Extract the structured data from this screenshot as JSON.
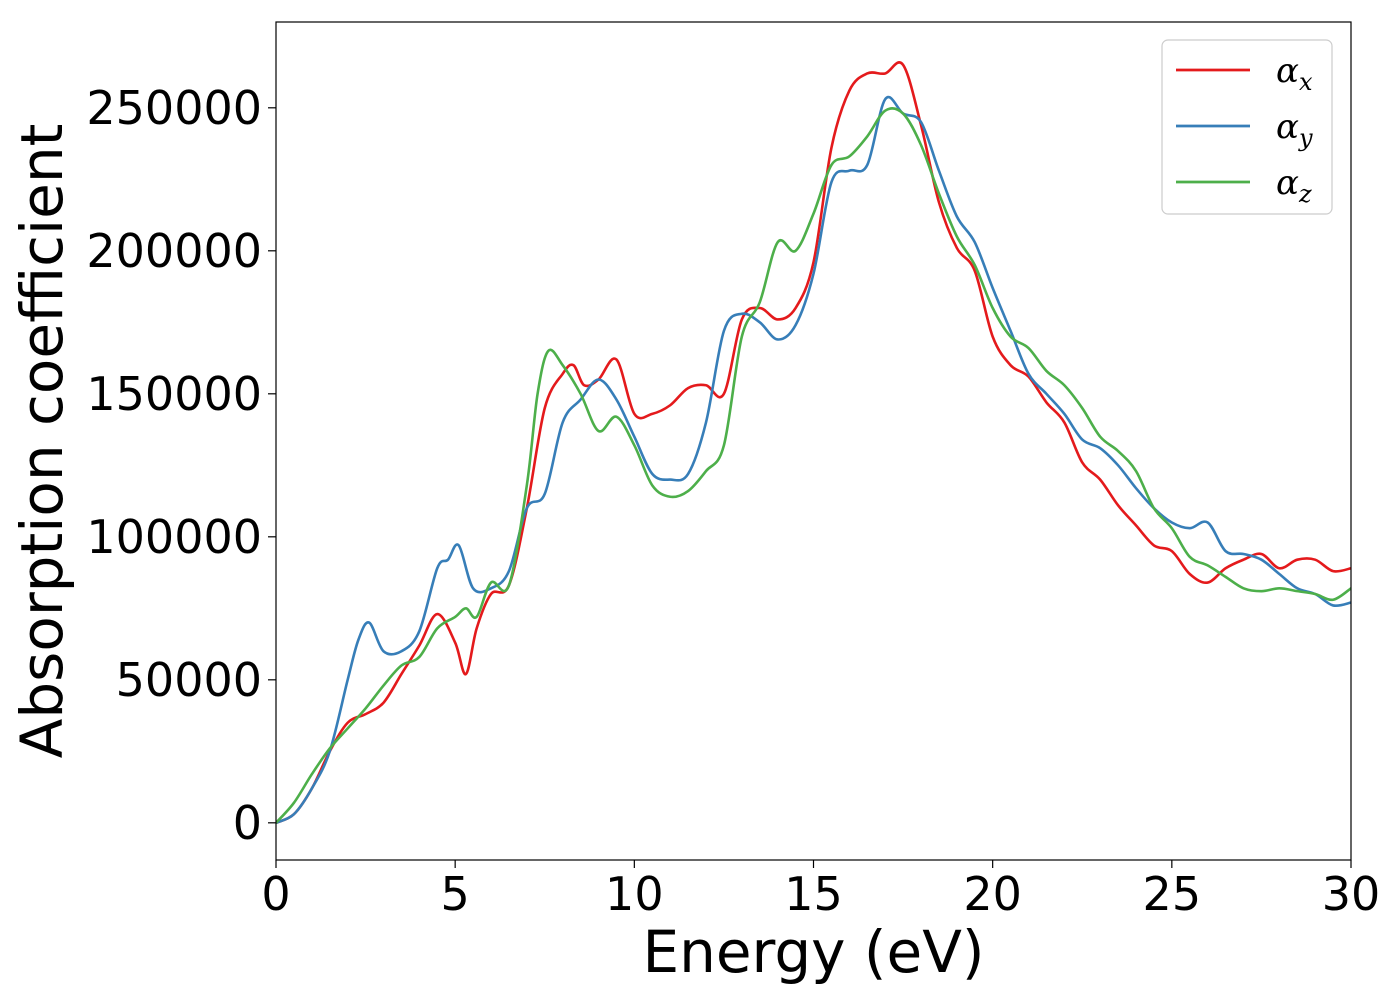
{
  "chart_data": {
    "type": "line",
    "xlabel": "Energy (eV)",
    "ylabel": "Absorption coefficient",
    "xlim": [
      0,
      30
    ],
    "ylim": [
      -13000,
      280000
    ],
    "xticks": [
      0,
      5,
      10,
      15,
      20,
      25,
      30
    ],
    "xtick_labels": [
      "0",
      "5",
      "10",
      "15",
      "20",
      "25",
      "30"
    ],
    "yticks": [
      0,
      50000,
      100000,
      150000,
      200000,
      250000
    ],
    "ytick_labels": [
      "0",
      "50000",
      "100000",
      "150000",
      "200000",
      "250000"
    ],
    "grid": false,
    "legend_position": "top-right",
    "series": [
      {
        "name": "α",
        "subscript": "x",
        "color": "#e41a1c",
        "x": [
          0,
          0.5,
          1.0,
          1.5,
          2.0,
          2.5,
          3.0,
          3.5,
          4.0,
          4.5,
          5.0,
          5.3,
          5.6,
          6.0,
          6.5,
          7.0,
          7.5,
          8.0,
          8.3,
          8.6,
          9.0,
          9.5,
          10.0,
          10.5,
          11.0,
          11.5,
          12.0,
          12.5,
          13.0,
          13.5,
          14.0,
          14.5,
          15.0,
          15.5,
          16.0,
          16.5,
          17.0,
          17.5,
          18.0,
          18.5,
          19.0,
          19.5,
          20.0,
          20.5,
          21.0,
          21.5,
          22.0,
          22.5,
          23.0,
          23.5,
          24.0,
          24.5,
          25.0,
          25.5,
          26.0,
          26.5,
          27.0,
          27.5,
          28.0,
          28.5,
          29.0,
          29.5,
          30.0
        ],
        "values": [
          0,
          3000,
          12000,
          25000,
          35000,
          38000,
          42000,
          52000,
          62000,
          73000,
          63000,
          52000,
          68000,
          80000,
          83000,
          110000,
          145000,
          157000,
          160000,
          153000,
          155000,
          162000,
          143000,
          143000,
          146000,
          152000,
          153000,
          150000,
          176000,
          180000,
          176000,
          180000,
          196000,
          236000,
          256000,
          262000,
          262000,
          265000,
          244000,
          217000,
          201000,
          193000,
          170000,
          160000,
          156000,
          147000,
          140000,
          126000,
          120000,
          111000,
          104000,
          97000,
          95000,
          87000,
          84000,
          89000,
          92000,
          94000,
          89000,
          92000,
          92000,
          88000,
          89000
        ]
      },
      {
        "name": "α",
        "subscript": "y",
        "color": "#377eb8",
        "x": [
          0,
          0.5,
          1.0,
          1.5,
          2.0,
          2.3,
          2.6,
          3.0,
          3.5,
          4.0,
          4.5,
          4.8,
          5.1,
          5.5,
          6.0,
          6.5,
          7.0,
          7.5,
          8.0,
          8.5,
          9.0,
          9.5,
          10.0,
          10.5,
          11.0,
          11.5,
          12.0,
          12.5,
          13.0,
          13.5,
          14.0,
          14.5,
          15.0,
          15.5,
          16.0,
          16.5,
          17.0,
          17.5,
          18.0,
          18.5,
          19.0,
          19.5,
          20.0,
          20.5,
          21.0,
          21.5,
          22.0,
          22.5,
          23.0,
          23.5,
          24.0,
          24.5,
          25.0,
          25.5,
          26.0,
          26.5,
          27.0,
          27.5,
          28.0,
          28.5,
          29.0,
          29.5,
          30.0
        ],
        "values": [
          0,
          3000,
          12000,
          25000,
          50000,
          64000,
          70000,
          60000,
          60000,
          67000,
          89000,
          92000,
          97000,
          82000,
          82000,
          88000,
          110000,
          115000,
          140000,
          148000,
          155000,
          148000,
          135000,
          122000,
          120000,
          122000,
          140000,
          172000,
          178000,
          175000,
          169000,
          174000,
          192000,
          224000,
          228000,
          230000,
          253000,
          248000,
          245000,
          228000,
          212000,
          203000,
          187000,
          172000,
          157000,
          150000,
          143000,
          134000,
          131000,
          125000,
          117000,
          110000,
          105000,
          103000,
          105000,
          95000,
          94000,
          92000,
          87000,
          82000,
          80000,
          76000,
          77000
        ]
      },
      {
        "name": "α",
        "subscript": "z",
        "color": "#4daf4a",
        "x": [
          0,
          0.5,
          1.0,
          1.5,
          2.0,
          2.5,
          3.0,
          3.5,
          4.0,
          4.5,
          5.0,
          5.3,
          5.6,
          6.0,
          6.5,
          7.0,
          7.3,
          7.6,
          8.0,
          8.5,
          9.0,
          9.5,
          10.0,
          10.5,
          11.0,
          11.5,
          12.0,
          12.5,
          13.0,
          13.5,
          14.0,
          14.5,
          15.0,
          15.5,
          16.0,
          16.5,
          17.0,
          17.5,
          18.0,
          18.5,
          19.0,
          19.5,
          20.0,
          20.5,
          21.0,
          21.5,
          22.0,
          22.5,
          23.0,
          23.5,
          24.0,
          24.5,
          25.0,
          25.5,
          26.0,
          26.5,
          27.0,
          27.5,
          28.0,
          28.5,
          29.0,
          29.5,
          30.0
        ],
        "values": [
          0,
          7000,
          17000,
          26000,
          33000,
          40000,
          48000,
          55000,
          58000,
          68000,
          72000,
          75000,
          72000,
          84000,
          83000,
          118000,
          150000,
          165000,
          160000,
          150000,
          137000,
          142000,
          132000,
          118000,
          114000,
          116000,
          123000,
          132000,
          170000,
          182000,
          203000,
          200000,
          213000,
          230000,
          233000,
          240000,
          249000,
          248000,
          237000,
          220000,
          205000,
          195000,
          180000,
          170000,
          166000,
          158000,
          153000,
          145000,
          135000,
          130000,
          123000,
          110000,
          103000,
          93000,
          90000,
          86000,
          82000,
          81000,
          82000,
          81000,
          80000,
          78000,
          82000
        ]
      }
    ]
  }
}
